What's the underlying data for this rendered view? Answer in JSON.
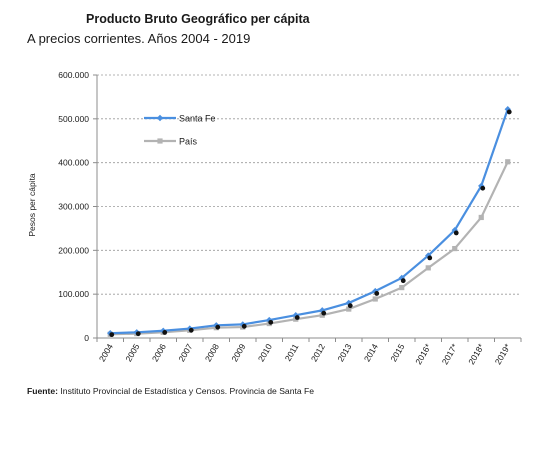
{
  "header": {
    "title": "Producto Bruto Geográfico per cápita",
    "subtitle": "A precios corrientes. Años 2004 - 2019"
  },
  "footer": {
    "source_label": "Fuente:",
    "source_text": "Instituto Provincial de Estadística y Censos. Provincia de Santa Fe"
  },
  "chart_data": {
    "type": "line",
    "title": "Producto Bruto Geográfico per cápita",
    "subtitle": "A precios corrientes. Años 2004 - 2019",
    "xlabel": "",
    "ylabel": "Pesos per cápita",
    "categories": [
      "2004",
      "2005",
      "2006",
      "2007",
      "2008",
      "2009",
      "2010",
      "2011",
      "2012",
      "2013",
      "2014",
      "2015",
      "2016*",
      "2017*",
      "2018*",
      "2019*"
    ],
    "yticks": [
      "0",
      "100.000",
      "200.000",
      "300.000",
      "400.000",
      "500.000",
      "600.000"
    ],
    "ylim": [
      0,
      600000
    ],
    "grid": true,
    "legend_position": "top-left",
    "series": [
      {
        "name": "Santa Fe",
        "color": "#4a8fe0",
        "values": [
          11000,
          13000,
          16500,
          21500,
          29000,
          31000,
          41000,
          52000,
          63000,
          80000,
          107000,
          137000,
          188000,
          246000,
          347000,
          522000
        ]
      },
      {
        "name": "País",
        "color": "#b3b3b3",
        "values": [
          8500,
          10000,
          13000,
          17500,
          23500,
          25000,
          33000,
          43000,
          52000,
          66000,
          89000,
          115000,
          160000,
          204000,
          275000,
          402000
        ]
      }
    ],
    "markers": {
      "name": "",
      "color": "#111111",
      "values": [
        10000,
        12000,
        15000,
        20000,
        27000,
        29000,
        38000,
        49000,
        59000,
        76000,
        104000,
        133000,
        185000,
        242000,
        344000,
        518000
      ]
    }
  }
}
